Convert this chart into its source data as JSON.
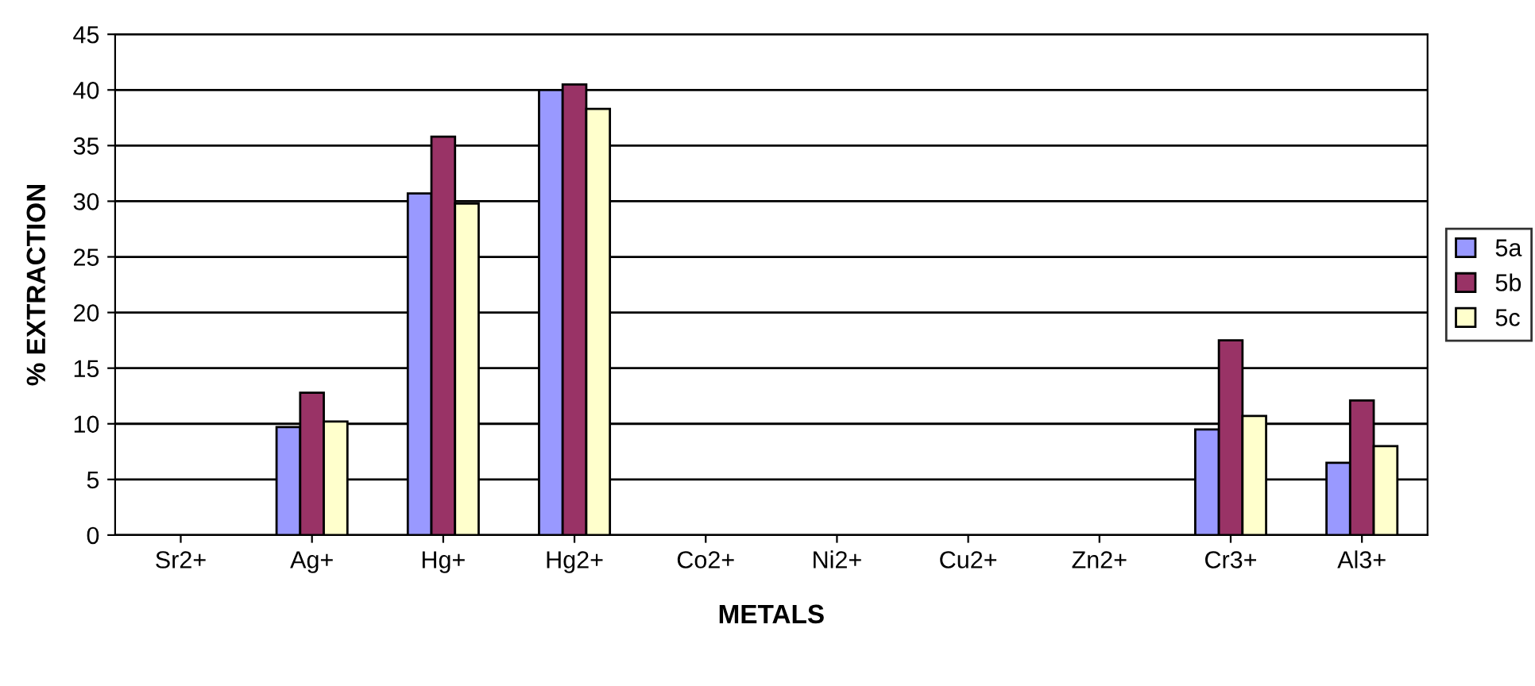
{
  "chart_data": {
    "type": "bar",
    "xlabel": "METALS",
    "ylabel": "% EXTRACTION",
    "categories": [
      "Sr2+",
      "Ag+",
      "Hg+",
      "Hg2+",
      "Co2+",
      "Ni2+",
      "Cu2+",
      "Zn2+",
      "Cr3+",
      "Al3+"
    ],
    "series": [
      {
        "name": "5a",
        "color": "#9999ff",
        "values": [
          null,
          9.7,
          30.7,
          40.0,
          null,
          null,
          null,
          null,
          9.5,
          6.5
        ]
      },
      {
        "name": "5b",
        "color": "#993366",
        "values": [
          null,
          12.8,
          35.8,
          40.5,
          null,
          null,
          null,
          null,
          17.5,
          12.1
        ]
      },
      {
        "name": "5c",
        "color": "#ffffcc",
        "values": [
          null,
          10.2,
          29.8,
          38.3,
          null,
          null,
          null,
          null,
          10.7,
          8.0
        ]
      }
    ],
    "ylim": [
      0,
      45
    ],
    "yticks": [
      0,
      5,
      10,
      15,
      20,
      25,
      30,
      35,
      40,
      45
    ],
    "grid": "y",
    "legend": "right"
  }
}
